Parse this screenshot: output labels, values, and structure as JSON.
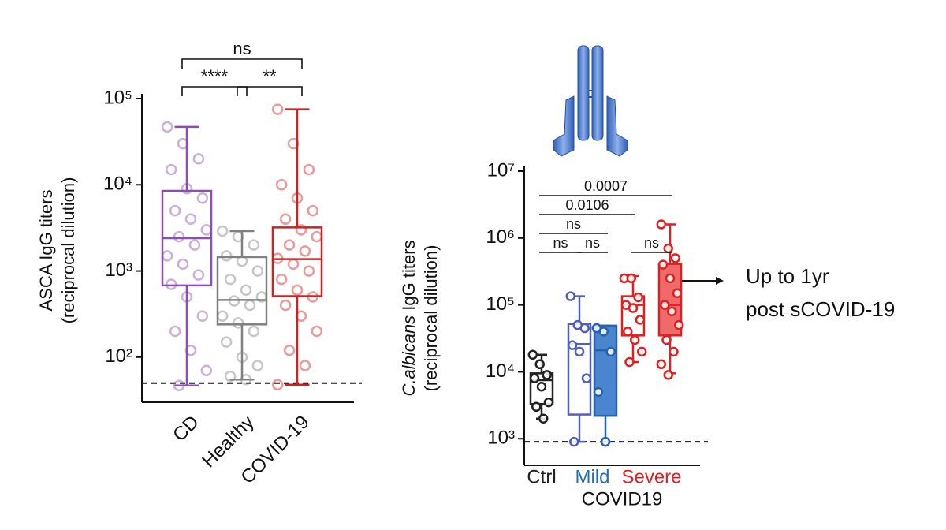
{
  "chart_data": [
    {
      "type": "box",
      "ylabel": "ASCA  IgG titers",
      "ylabel2": "(reciprocal dilution)",
      "log": true,
      "ylim": [
        30,
        100000
      ],
      "yticks": [
        {
          "value": 100,
          "label": "10²"
        },
        {
          "value": 1000,
          "label": "10³"
        },
        {
          "value": 10000,
          "label": "10⁴"
        },
        {
          "value": 100000,
          "label": "10⁵"
        }
      ],
      "cutoff": 50,
      "categories": [
        "CD",
        "Healthy",
        "COVID-19"
      ],
      "boxes": [
        {
          "color": "#8a4fb0",
          "min": 47,
          "q1": 680,
          "median": 2400,
          "q3": 8500,
          "max": 47000,
          "points": [
            47000,
            30000,
            20000,
            15000,
            9000,
            7000,
            5000,
            4000,
            3000,
            2500,
            2000,
            1500,
            1200,
            900,
            700,
            500,
            300,
            200,
            120,
            70,
            47
          ]
        },
        {
          "color": "#808080",
          "min": 55,
          "q1": 240,
          "median": 460,
          "q3": 1450,
          "max": 2900,
          "points": [
            2900,
            2500,
            2000,
            1500,
            1300,
            1000,
            800,
            600,
            500,
            450,
            400,
            300,
            250,
            200,
            150,
            100,
            80,
            60,
            55
          ]
        },
        {
          "color": "#d02020",
          "min": 48,
          "q1": 510,
          "median": 1370,
          "q3": 3200,
          "max": 75000,
          "points": [
            75000,
            30000,
            15000,
            10000,
            7000,
            5000,
            4000,
            3000,
            2500,
            2000,
            1700,
            1400,
            1200,
            1000,
            800,
            600,
            500,
            400,
            300,
            200,
            120,
            80,
            48
          ]
        }
      ],
      "comparisons": [
        {
          "from": 0,
          "to": 1,
          "label": "****"
        },
        {
          "from": 1,
          "to": 2,
          "label": "**"
        },
        {
          "from": 0,
          "to": 2,
          "label": "ns"
        }
      ]
    },
    {
      "type": "box",
      "ylabel_italic": "C.albicans",
      "ylabel": " IgG titers",
      "ylabel2": "(reciprocal dilution)",
      "log": true,
      "ylim": [
        400,
        10000000
      ],
      "yticks": [
        {
          "value": 1000,
          "label": "10³"
        },
        {
          "value": 10000,
          "label": "10⁴"
        },
        {
          "value": 100000,
          "label": "10⁵"
        },
        {
          "value": 1000000,
          "label": "10⁶"
        },
        {
          "value": 10000000,
          "label": "10⁷"
        }
      ],
      "cutoff": 900,
      "categories": [
        {
          "label": "Ctrl",
          "color": "#222222",
          "boxes": [
            {
              "color": "#222222",
              "fill": null,
              "min": 2000,
              "q1": 3300,
              "median": 7500,
              "q3": 9500,
              "max": 18000,
              "points": [
                18000,
                13000,
                9000,
                8000,
                6000,
                3500,
                3000,
                2000
              ]
            }
          ]
        },
        {
          "label": "Mild",
          "color": "#1f6fc0",
          "boxes": [
            {
              "color": "#5060b8",
              "fill": null,
              "min": 900,
              "q1": 2300,
              "median": 26000,
              "q3": 52000,
              "max": 135000,
              "points": [
                135000,
                50000,
                45000,
                25000,
                20000,
                8000,
                900
              ]
            },
            {
              "color": "#2a60b0",
              "fill": "#4a86d0",
              "min": 900,
              "q1": 2200,
              "median": 21000,
              "q3": 49000,
              "max": 49000,
              "points": [
                45000,
                40000,
                20000,
                5000,
                900
              ]
            }
          ]
        },
        {
          "label": "Severe",
          "color": "#e02020",
          "boxes": [
            {
              "color": "#e02020",
              "fill": null,
              "min": 14000,
              "q1": 35000,
              "median": 100000,
              "q3": 135000,
              "max": 270000,
              "points": [
                250000,
                250000,
                130000,
                100000,
                90000,
                60000,
                40000,
                30000,
                20000,
                14000
              ]
            },
            {
              "color": "#e02020",
              "fill": "#f06a6a",
              "min": 9500,
              "q1": 35000,
              "median": 100000,
              "q3": 410000,
              "max": 1600000,
              "points": [
                1600000,
                700000,
                500000,
                400000,
                250000,
                150000,
                100000,
                80000,
                50000,
                30000,
                20000,
                13000,
                9000
              ]
            }
          ]
        }
      ],
      "group_label": "COVID19",
      "comparisons": [
        {
          "from": 0,
          "to": 1,
          "label": "ns"
        },
        {
          "from": 1,
          "to": 2,
          "label": "ns"
        },
        {
          "from": 3,
          "to": 4,
          "label": "ns"
        },
        {
          "from": 0,
          "to": 2,
          "label": "ns"
        },
        {
          "from": 0,
          "to": 3,
          "label": "0.0106"
        },
        {
          "from": 0,
          "to": 4,
          "label": "0.0007"
        }
      ]
    }
  ],
  "note": {
    "line1": "Up to 1yr",
    "line2": "post sCOVID-19"
  }
}
